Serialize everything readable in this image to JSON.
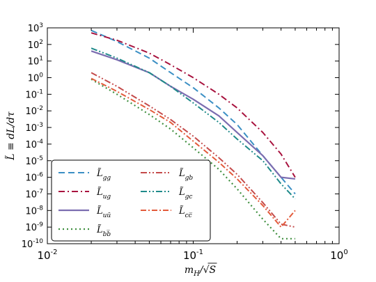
{
  "chart_data": {
    "type": "line",
    "xscale": "log",
    "yscale": "log",
    "xlim": [
      0.01,
      1.0
    ],
    "ylim": [
      1e-10,
      1000
    ],
    "xlabel": "m_H/√S",
    "ylabel": "L̃ ≡ dL/dτ",
    "legend": "lower-left",
    "grid": false,
    "x_ticks": [
      {
        "value": 0.01,
        "base": "10",
        "exp": "-2"
      },
      {
        "value": 0.1,
        "base": "10",
        "exp": "-1"
      },
      {
        "value": 1.0,
        "base": "10",
        "exp": "0"
      }
    ],
    "y_ticks": [
      {
        "value": 1000,
        "base": "10",
        "exp": "3"
      },
      {
        "value": 100,
        "base": "10",
        "exp": "2"
      },
      {
        "value": 10,
        "base": "10",
        "exp": "1"
      },
      {
        "value": 1,
        "base": "10",
        "exp": "0"
      },
      {
        "value": 0.1,
        "base": "10",
        "exp": "-1"
      },
      {
        "value": 0.01,
        "base": "10",
        "exp": "-2"
      },
      {
        "value": 0.001,
        "base": "10",
        "exp": "-3"
      },
      {
        "value": 0.0001,
        "base": "10",
        "exp": "-4"
      },
      {
        "value": 1e-05,
        "base": "10",
        "exp": "-5"
      },
      {
        "value": 1e-06,
        "base": "10",
        "exp": "-6"
      },
      {
        "value": 1e-07,
        "base": "10",
        "exp": "-7"
      },
      {
        "value": 1e-08,
        "base": "10",
        "exp": "-8"
      },
      {
        "value": 1e-09,
        "base": "10",
        "exp": "-9"
      },
      {
        "value": 1e-10,
        "base": "10",
        "exp": "-10"
      }
    ],
    "series": [
      {
        "name": "L̃gg",
        "sub": "gg",
        "color": "#3a8fc4",
        "dash": "9,5",
        "width": 2,
        "x": [
          0.02,
          0.03,
          0.05,
          0.07,
          0.1,
          0.15,
          0.2,
          0.3,
          0.4,
          0.5
        ],
        "y": [
          700,
          150,
          15,
          2,
          0.25,
          0.015,
          0.0015,
          2e-05,
          1e-06,
          1e-07
        ]
      },
      {
        "name": "L̃ug",
        "sub": "ug",
        "color": "#a8123e",
        "dash": "9,4,2,4",
        "width": 2,
        "x": [
          0.02,
          0.03,
          0.05,
          0.07,
          0.1,
          0.15,
          0.2,
          0.3,
          0.4,
          0.5
        ],
        "y": [
          500,
          180,
          30,
          6,
          1,
          0.1,
          0.015,
          0.0005,
          2.5e-05,
          1e-06
        ]
      },
      {
        "name": "L̃uū",
        "sub": "uū",
        "color": "#7b6db0",
        "dash": "",
        "width": 2.2,
        "x": [
          0.02,
          0.03,
          0.05,
          0.07,
          0.1,
          0.15,
          0.2,
          0.3,
          0.4,
          0.5
        ],
        "y": [
          40,
          12,
          2,
          0.3,
          0.05,
          0.005,
          0.0005,
          2e-05,
          1e-06,
          8e-07
        ]
      },
      {
        "name": "L̃b̅b",
        "sub": "bb̅",
        "color": "#3f8f3f",
        "dash": "2,4",
        "width": 2.2,
        "x": [
          0.02,
          0.03,
          0.05,
          0.07,
          0.1,
          0.15,
          0.2,
          0.3,
          0.4,
          0.5
        ],
        "y": [
          0.8,
          0.1,
          0.006,
          0.0008,
          6e-05,
          3e-06,
          2e-07,
          3e-09,
          2e-10,
          2e-10
        ]
      },
      {
        "name": "L̃gb",
        "sub": "gb",
        "color": "#c44a4a",
        "dash": "9,3,2,3,2,3",
        "width": 2,
        "x": [
          0.02,
          0.03,
          0.05,
          0.07,
          0.1,
          0.15,
          0.2,
          0.3,
          0.4,
          0.5
        ],
        "y": [
          2,
          0.3,
          0.02,
          0.003,
          0.0003,
          1.5e-05,
          1.5e-06,
          3e-08,
          1.5e-09,
          1e-09
        ]
      },
      {
        "name": "L̃gc",
        "sub": "gc",
        "color": "#1f8a8a",
        "dash": "9,3,2,3,2,3",
        "width": 2,
        "x": [
          0.02,
          0.03,
          0.05,
          0.07,
          0.1,
          0.15,
          0.2,
          0.3,
          0.4,
          0.5
        ],
        "y": [
          60,
          15,
          2,
          0.3,
          0.03,
          0.002,
          0.0002,
          1e-05,
          4e-07,
          5e-08
        ]
      },
      {
        "name": "L̃c̅c",
        "sub": "cc̅",
        "color": "#e35a3a",
        "dash": "8,3,2,3",
        "width": 2,
        "x": [
          0.02,
          0.03,
          0.05,
          0.07,
          0.1,
          0.15,
          0.2,
          0.3,
          0.4,
          0.5
        ],
        "y": [
          0.9,
          0.15,
          0.012,
          0.002,
          0.00015,
          8e-06,
          8e-07,
          2e-08,
          1e-09,
          1e-08
        ]
      }
    ]
  }
}
